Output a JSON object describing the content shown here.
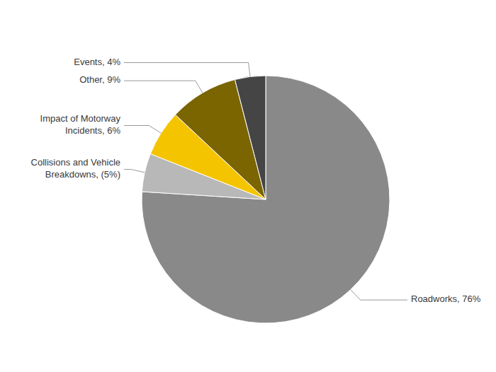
{
  "chart_data": {
    "type": "pie",
    "categories": [
      "Roadworks, 76%",
      "Collisions and Vehicle\nBreakdowns, (5%)",
      "Impact of Motorway\nIncidents, 6%",
      "Other, 9%",
      "Events, 4%"
    ],
    "values": [
      76,
      5,
      6,
      9,
      4
    ],
    "colors": [
      "#898989",
      "#b8b8b8",
      "#f5c400",
      "#7a6500",
      "#454545"
    ]
  }
}
